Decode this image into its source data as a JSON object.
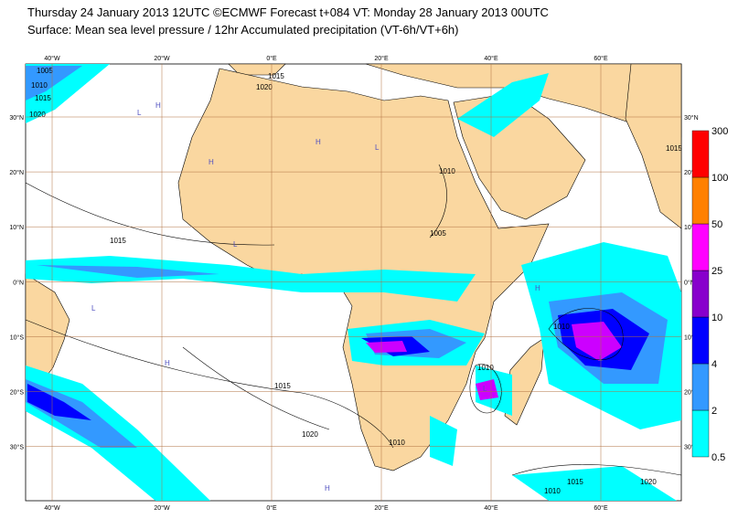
{
  "header": {
    "title": "Thursday 24 January 2013 12UTC ©ECMWF Forecast t+084 VT: Monday 28 January 2013 00UTC",
    "subtitle": "Surface: Mean sea level pressure / 12hr Accumulated precipitation (VT-6h/VT+6h)"
  },
  "map": {
    "lon_labels": [
      "40°W",
      "20°W",
      "0°E",
      "20°E",
      "40°E",
      "60°E"
    ],
    "lat_labels": [
      "30°N",
      "20°N",
      "10°N",
      "0°N",
      "10°S",
      "20°S",
      "30°S"
    ],
    "isobar_labels": [
      "1005",
      "1010",
      "1015",
      "1020"
    ],
    "pressure_centers": [
      "H",
      "L"
    ]
  },
  "colorbar": {
    "levels": [
      0.5,
      2,
      4,
      10,
      25,
      50,
      100,
      300
    ],
    "colors": [
      "#00ffff",
      "#3399ff",
      "#0000ff",
      "#8800cc",
      "#ff00ff",
      "#ff8000",
      "#ff0000"
    ]
  }
}
